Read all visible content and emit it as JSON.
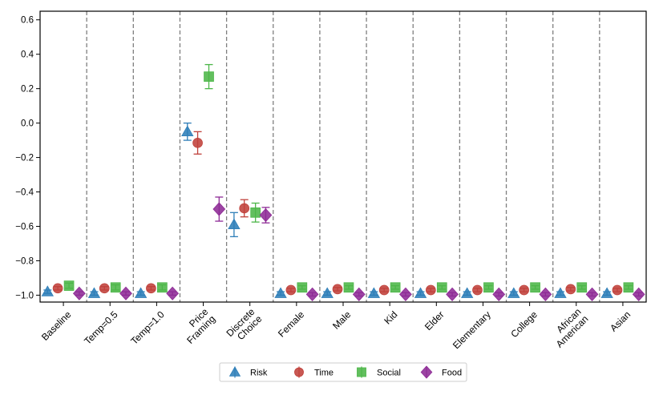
{
  "chart_data": {
    "type": "scatter",
    "title": "",
    "xlabel": "",
    "ylabel": "",
    "ylim": [
      -1.04,
      0.65
    ],
    "yticks": [
      "0.6",
      "0.4",
      "0.2",
      "0.0",
      "−0.2",
      "−0.4",
      "−0.6",
      "−0.8",
      "−1.0"
    ],
    "ytick_values": [
      0.6,
      0.4,
      0.2,
      0.0,
      -0.2,
      -0.4,
      -0.6,
      -0.8,
      -1.0
    ],
    "categories": [
      [
        "Baseline"
      ],
      [
        "Temp=0.5"
      ],
      [
        "Temp=1.0"
      ],
      [
        "Price",
        "Framing"
      ],
      [
        "Discrete",
        "Choice"
      ],
      [
        "Female"
      ],
      [
        "Male"
      ],
      [
        "Kid"
      ],
      [
        "Elder"
      ],
      [
        "Elementary"
      ],
      [
        "College"
      ],
      [
        "African",
        "American"
      ],
      [
        "Asian"
      ]
    ],
    "series": [
      {
        "name": "Risk",
        "marker": "triangle",
        "color": "#2E7EB8",
        "values": [
          -0.98,
          -0.99,
          -0.99,
          -0.05,
          -0.59,
          -0.99,
          -0.99,
          -0.99,
          -0.99,
          -0.99,
          -0.99,
          -0.99,
          -0.99
        ],
        "errors": [
          0.01,
          0.01,
          0.01,
          0.05,
          0.07,
          0.01,
          0.01,
          0.01,
          0.01,
          0.01,
          0.01,
          0.01,
          0.01
        ]
      },
      {
        "name": "Time",
        "marker": "circle",
        "color": "#C0413B",
        "values": [
          -0.96,
          -0.96,
          -0.96,
          -0.115,
          -0.495,
          -0.97,
          -0.965,
          -0.97,
          -0.97,
          -0.97,
          -0.97,
          -0.965,
          -0.97
        ],
        "errors": [
          0.01,
          0.01,
          0.01,
          0.065,
          0.05,
          0.01,
          0.01,
          0.01,
          0.01,
          0.01,
          0.01,
          0.01,
          0.01
        ]
      },
      {
        "name": "Social",
        "marker": "square",
        "color": "#4CB648",
        "values": [
          -0.945,
          -0.955,
          -0.955,
          0.27,
          -0.52,
          -0.955,
          -0.955,
          -0.955,
          -0.955,
          -0.955,
          -0.955,
          -0.955,
          -0.955
        ],
        "errors": [
          0.015,
          0.015,
          0.015,
          0.07,
          0.055,
          0.01,
          0.01,
          0.01,
          0.01,
          0.01,
          0.01,
          0.01,
          0.01
        ]
      },
      {
        "name": "Food",
        "marker": "diamond",
        "color": "#8E2B96",
        "values": [
          -0.99,
          -0.99,
          -0.99,
          -0.5,
          -0.535,
          -0.995,
          -0.995,
          -0.995,
          -0.995,
          -0.995,
          -0.995,
          -0.995,
          -0.995
        ],
        "errors": [
          0.01,
          0.01,
          0.01,
          0.07,
          0.045,
          0.01,
          0.01,
          0.01,
          0.01,
          0.01,
          0.01,
          0.01,
          0.01
        ]
      }
    ],
    "legend": [
      "Risk",
      "Time",
      "Social",
      "Food"
    ],
    "legend_placement": "bottom-center",
    "separators": "dashed"
  }
}
